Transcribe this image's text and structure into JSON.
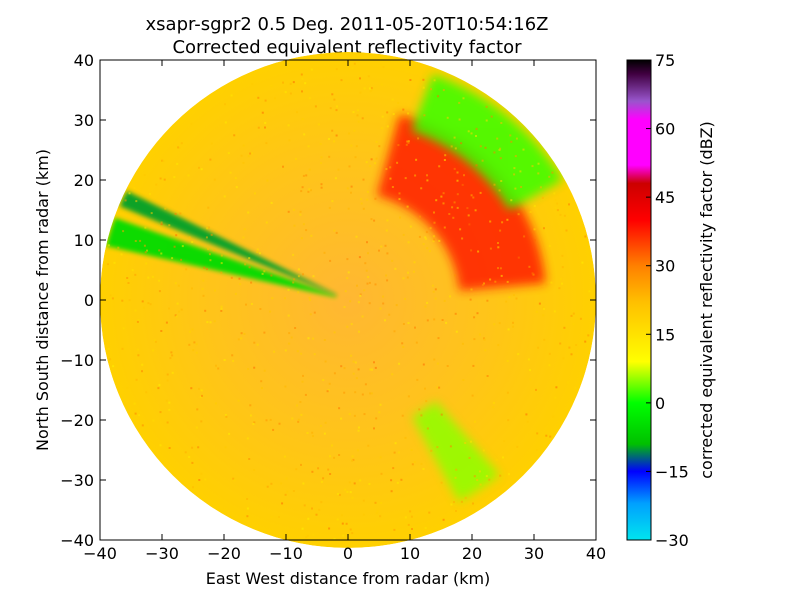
{
  "figure": {
    "title_line1": "xsapr-sgpr2 0.5 Deg. 2011-05-20T10:54:16Z",
    "title_line2": "Corrected equivalent reflectivity factor"
  },
  "chart_data": {
    "type": "heatmap",
    "title": "xsapr-sgpr2 0.5 Deg. 2011-05-20T10:54:16Z\nCorrected equivalent reflectivity factor",
    "xlabel": "East West distance from radar (km)",
    "ylabel": "North South distance from radar (km)",
    "xlim": [
      -40,
      40
    ],
    "ylim": [
      -40,
      40
    ],
    "x_ticks": [
      "−40",
      "−30",
      "−20",
      "−10",
      "0",
      "10",
      "20",
      "30",
      "40"
    ],
    "y_ticks": [
      "−40",
      "−30",
      "−20",
      "−10",
      "0",
      "10",
      "20",
      "30",
      "40"
    ],
    "x_tick_values": [
      -40,
      -30,
      -20,
      -10,
      0,
      10,
      20,
      30,
      40
    ],
    "y_tick_values": [
      -40,
      -30,
      -20,
      -10,
      0,
      10,
      20,
      30,
      40
    ],
    "grid": false,
    "max_range_km": 40,
    "colorbar": {
      "label": "corrected equivalent reflectivity factor (dBZ)",
      "min": -30,
      "max": 75,
      "ticks": [
        "−30",
        "−15",
        "0",
        "15",
        "30",
        "45",
        "60",
        "75"
      ],
      "tick_values": [
        -30,
        -15,
        0,
        15,
        30,
        45,
        60,
        75
      ],
      "colors": [
        {
          "value": -30,
          "color": "#00e5ee"
        },
        {
          "value": -22,
          "color": "#00a0ff"
        },
        {
          "value": -15,
          "color": "#0000ff"
        },
        {
          "value": -9,
          "color": "#00c000"
        },
        {
          "value": 0,
          "color": "#00ff00"
        },
        {
          "value": 9,
          "color": "#ffff00"
        },
        {
          "value": 22,
          "color": "#ffc000"
        },
        {
          "value": 30,
          "color": "#ff8000"
        },
        {
          "value": 40,
          "color": "#ff0000"
        },
        {
          "value": 48,
          "color": "#cc0000"
        },
        {
          "value": 52,
          "color": "#ff00ff"
        },
        {
          "value": 62,
          "color": "#ff00ff"
        },
        {
          "value": 66,
          "color": "#9955cc"
        },
        {
          "value": 72,
          "color": "#400040"
        },
        {
          "value": 75,
          "color": "#000000"
        }
      ]
    },
    "field_regions": [
      {
        "name": "background",
        "dbz": 22
      },
      {
        "name": "northeast-band",
        "dbz": 38,
        "azimuth_deg": [
          15,
          85
        ],
        "range_km": [
          18,
          32
        ]
      },
      {
        "name": "northeast-edge-echo",
        "dbz": 2,
        "azimuth_deg": [
          20,
          60
        ],
        "range_km": [
          30,
          40
        ]
      },
      {
        "name": "southeast-streak",
        "dbz": 5,
        "azimuth_deg": [
          140,
          152
        ],
        "range_km": [
          22,
          38
        ]
      },
      {
        "name": "western-beam-blockage-1",
        "dbz": -5,
        "azimuth_deg": [
          283,
          290
        ],
        "range_km": [
          2,
          40
        ]
      },
      {
        "name": "western-beam-blockage-2",
        "dbz": -10,
        "azimuth_deg": [
          293,
          297
        ],
        "range_km": [
          2,
          40
        ]
      }
    ]
  }
}
